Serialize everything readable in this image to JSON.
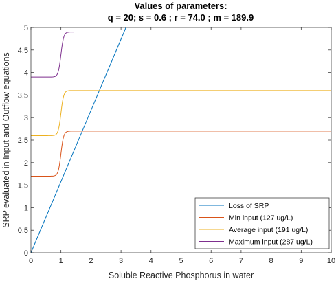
{
  "chart_data": {
    "type": "line",
    "title": "Values of parameters:",
    "subtitle": "q = 20; s = 0.6 ; r = 74.0 ; m = 189.9",
    "xlabel": "Soluble Reactive Phosphorus in water",
    "ylabel": "SRP evaluated in Input and Outflow equations",
    "xlim": [
      0,
      10
    ],
    "ylim": [
      0,
      5
    ],
    "xticks": [
      "0",
      "1",
      "2",
      "3",
      "4",
      "5",
      "6",
      "7",
      "8",
      "9",
      "10"
    ],
    "yticks": [
      "0",
      "0.5",
      "1",
      "1.5",
      "2",
      "2.5",
      "3",
      "3.5",
      "4",
      "4.5",
      "5"
    ],
    "grid": false,
    "legend_location": "bottom-right",
    "series": [
      {
        "name": "Loss of SRP",
        "color": "#0072BD",
        "kind": "linear",
        "x": [
          0,
          3.1646
        ],
        "y": [
          0,
          5
        ]
      },
      {
        "name": "Min input (127 ug/L)",
        "color": "#D95319",
        "kind": "sigmoid",
        "low": 1.7,
        "high": 2.7,
        "midpoint": 1.0
      },
      {
        "name": "Average input (191 ug/L)",
        "color": "#EDB120",
        "kind": "sigmoid",
        "low": 2.6,
        "high": 3.6,
        "midpoint": 1.0
      },
      {
        "name": "Maximum input (287 ug/L)",
        "color": "#7E2F8E",
        "kind": "sigmoid",
        "low": 3.9,
        "high": 4.9,
        "midpoint": 1.0
      }
    ]
  }
}
